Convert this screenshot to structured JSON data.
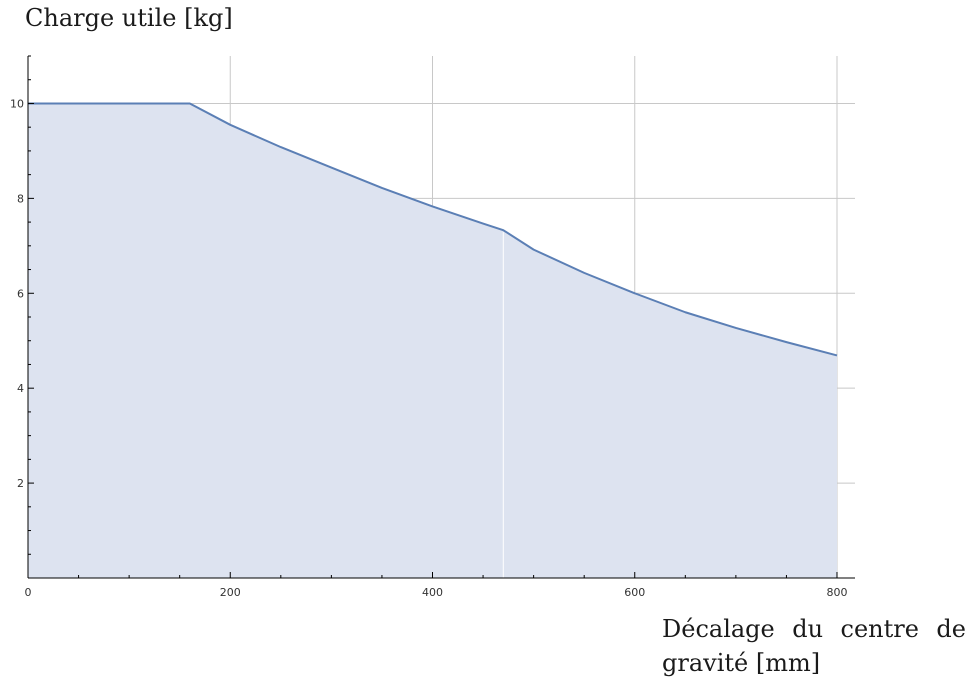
{
  "chart_data": {
    "type": "area",
    "ylabel": "Charge utile [kg]",
    "xlabel": "Décalage du centre de gravité [mm]",
    "xlim": [
      0,
      800
    ],
    "ylim": [
      0,
      11
    ],
    "x_ticks": [
      0,
      200,
      400,
      600,
      800
    ],
    "y_ticks": [
      2,
      4,
      6,
      8,
      10
    ],
    "grid": true,
    "series": [
      {
        "x": [
          0,
          160,
          200,
          250,
          300,
          350,
          400,
          450,
          470,
          500,
          550,
          600,
          650,
          700,
          750,
          800
        ],
        "y": [
          10,
          10,
          9.55,
          9.08,
          8.65,
          8.22,
          7.83,
          7.47,
          7.33,
          6.92,
          6.43,
          6.0,
          5.6,
          5.27,
          4.97,
          4.69
        ]
      }
    ],
    "colors": {
      "line": "#5b7fb5",
      "fill": "#dde3f0",
      "grid": "#c8c8c8",
      "axis": "#000000"
    }
  }
}
